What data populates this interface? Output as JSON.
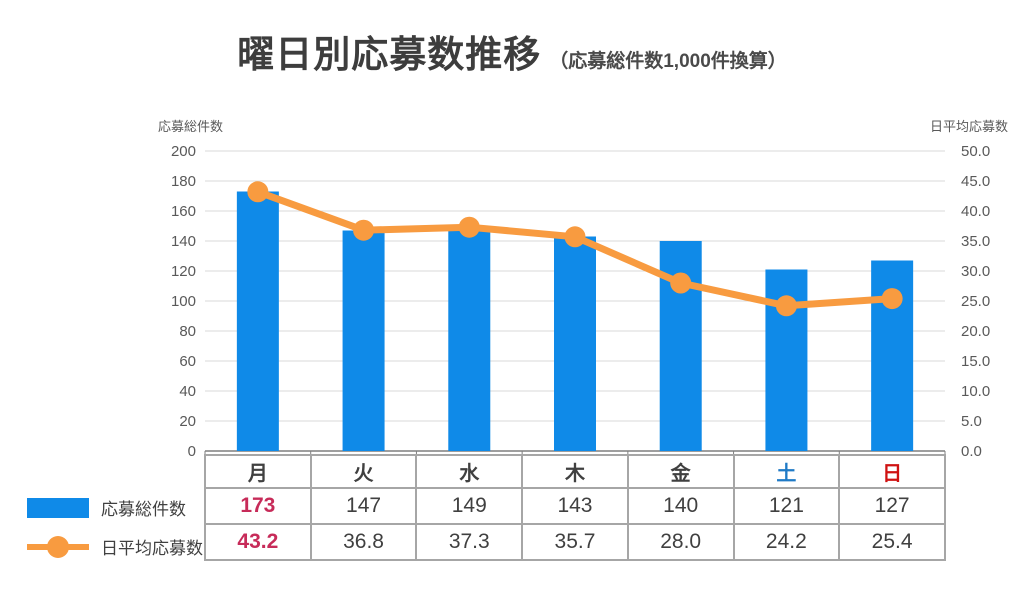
{
  "title": "曜日別応募数推移",
  "subtitle": "（応募総件数1,000件換算）",
  "chart_data": {
    "type": "bar+line",
    "categories": [
      "月",
      "火",
      "水",
      "木",
      "金",
      "土",
      "日"
    ],
    "category_colors": [
      "#404040",
      "#404040",
      "#404040",
      "#404040",
      "#404040",
      "#1f7ac6",
      "#cf1212"
    ],
    "series": [
      {
        "name": "応募総件数",
        "type": "bar",
        "axis": "left",
        "color": "#0f8ae8",
        "values": [
          173,
          147,
          149,
          143,
          140,
          121,
          127
        ]
      },
      {
        "name": "日平均応募数",
        "type": "line",
        "axis": "right",
        "color": "#f89b40",
        "values": [
          43.2,
          36.8,
          37.3,
          35.7,
          28.0,
          24.2,
          25.4
        ]
      }
    ],
    "left_axis": {
      "title": "応募総件数",
      "min": 0,
      "max": 200,
      "step": 20,
      "decimals": 0,
      "tick_labels": [
        "0",
        "20",
        "40",
        "60",
        "80",
        "100",
        "120",
        "140",
        "160",
        "180",
        "200"
      ]
    },
    "right_axis": {
      "title": "日平均応募数",
      "min": 0,
      "max": 50,
      "step": 5,
      "decimals": 1,
      "tick_labels": [
        "0.0",
        "5.0",
        "10.0",
        "15.0",
        "20.0",
        "25.0",
        "30.0",
        "35.0",
        "40.0",
        "45.0",
        "50.0"
      ]
    },
    "grid": true,
    "legend_position": "left-of-table-rows",
    "highlight": {
      "category": "月",
      "text_color": "#c72b59"
    }
  },
  "colors": {
    "grid_line": "#d9d9d9",
    "axis_line": "#7f7f7f",
    "table_border": "#a6a6a6",
    "tick_text": "#595959",
    "title_text": "#3d3d3d"
  }
}
